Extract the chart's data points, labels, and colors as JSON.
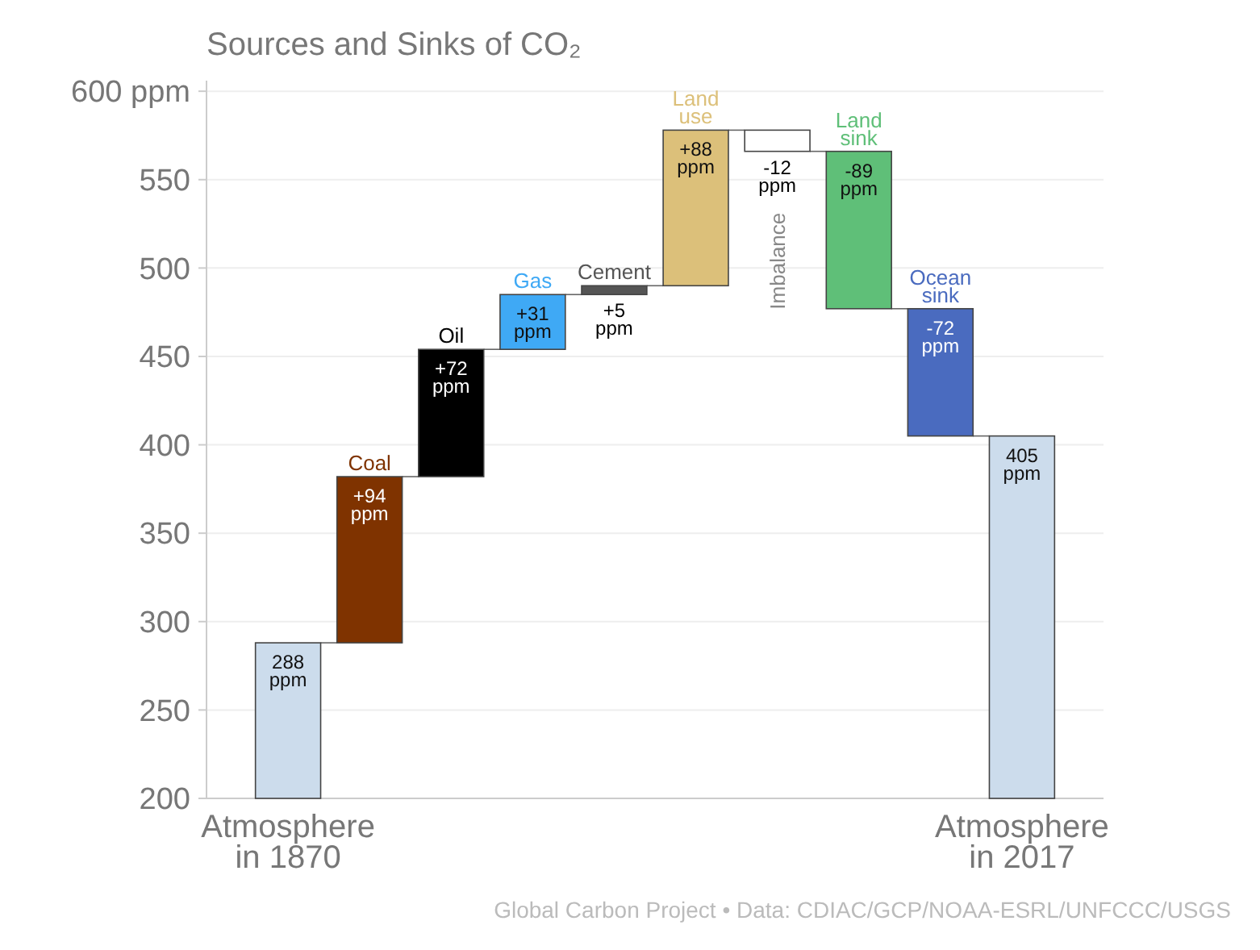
{
  "chart_data": {
    "type": "bar",
    "title": "Sources and Sinks of CO₂",
    "categories": [
      "Atmosphere in 1870",
      "Coal",
      "Oil",
      "Gas",
      "Cement",
      "Land use",
      "Imbalance",
      "Land sink",
      "Ocean sink",
      "Atmosphere in 2017"
    ],
    "values": [
      288,
      94,
      72,
      31,
      5,
      88,
      -12,
      -89,
      -72,
      405
    ],
    "base": [
      null,
      288,
      382,
      454,
      485,
      490,
      578,
      566,
      477,
      null
    ],
    "colors": [
      "#ccdcec",
      "#7f3300",
      "#000000",
      "#3fa9f5",
      "#555555",
      "#dcc07a",
      "#ffffff",
      "#5fbf78",
      "#4a6bbf",
      "#ccdcec"
    ],
    "value_labels": [
      "288 ppm",
      "+94 ppm",
      "+72 ppm",
      "+31 ppm",
      "+5 ppm",
      "+88 ppm",
      "-12 ppm",
      "-89 ppm",
      "-72 ppm",
      "405 ppm"
    ],
    "ylim": [
      200,
      606
    ],
    "yticks": [
      200,
      250,
      300,
      350,
      400,
      450,
      500,
      550,
      {
        "value": 600,
        "label": "600 ppm"
      }
    ],
    "grid": "y",
    "annotations": [
      "Global Carbon Project • Data: CDIAC/GCP/NOAA-ESRL/UNFCCC/USGS"
    ]
  }
}
